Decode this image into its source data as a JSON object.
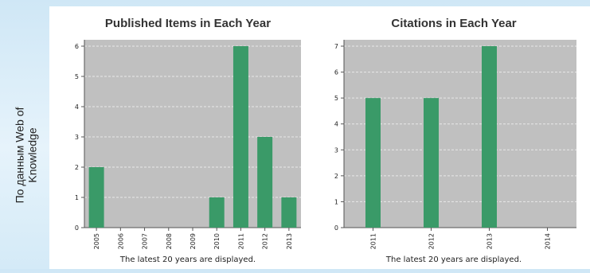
{
  "side_label": {
    "line1": "По данным Web of",
    "line2": "Knowledge"
  },
  "colors": {
    "bar": "#3a9a68",
    "plot_bg": "#c0c0c0",
    "grid": "#e8e8e8"
  },
  "chart_data": [
    {
      "type": "bar",
      "title": "Published Items in Each Year",
      "categories": [
        "2005",
        "2006",
        "2007",
        "2008",
        "2009",
        "2010",
        "2011",
        "2012",
        "2013"
      ],
      "values": [
        2,
        0,
        0,
        0,
        0,
        1,
        6,
        3,
        1
      ],
      "ylim": [
        0,
        6
      ],
      "yticks": [
        0,
        1,
        2,
        3,
        4,
        5,
        6
      ],
      "grid": true,
      "note": "The latest 20 years are displayed."
    },
    {
      "type": "bar",
      "title": "Citations in Each Year",
      "categories": [
        "2011",
        "2012",
        "2013",
        "2014"
      ],
      "values": [
        5,
        5,
        7,
        0
      ],
      "ylim": [
        0,
        7
      ],
      "yticks": [
        0,
        1,
        2,
        3,
        4,
        5,
        6,
        7
      ],
      "grid": true,
      "note": "The latest 20 years are displayed."
    }
  ]
}
